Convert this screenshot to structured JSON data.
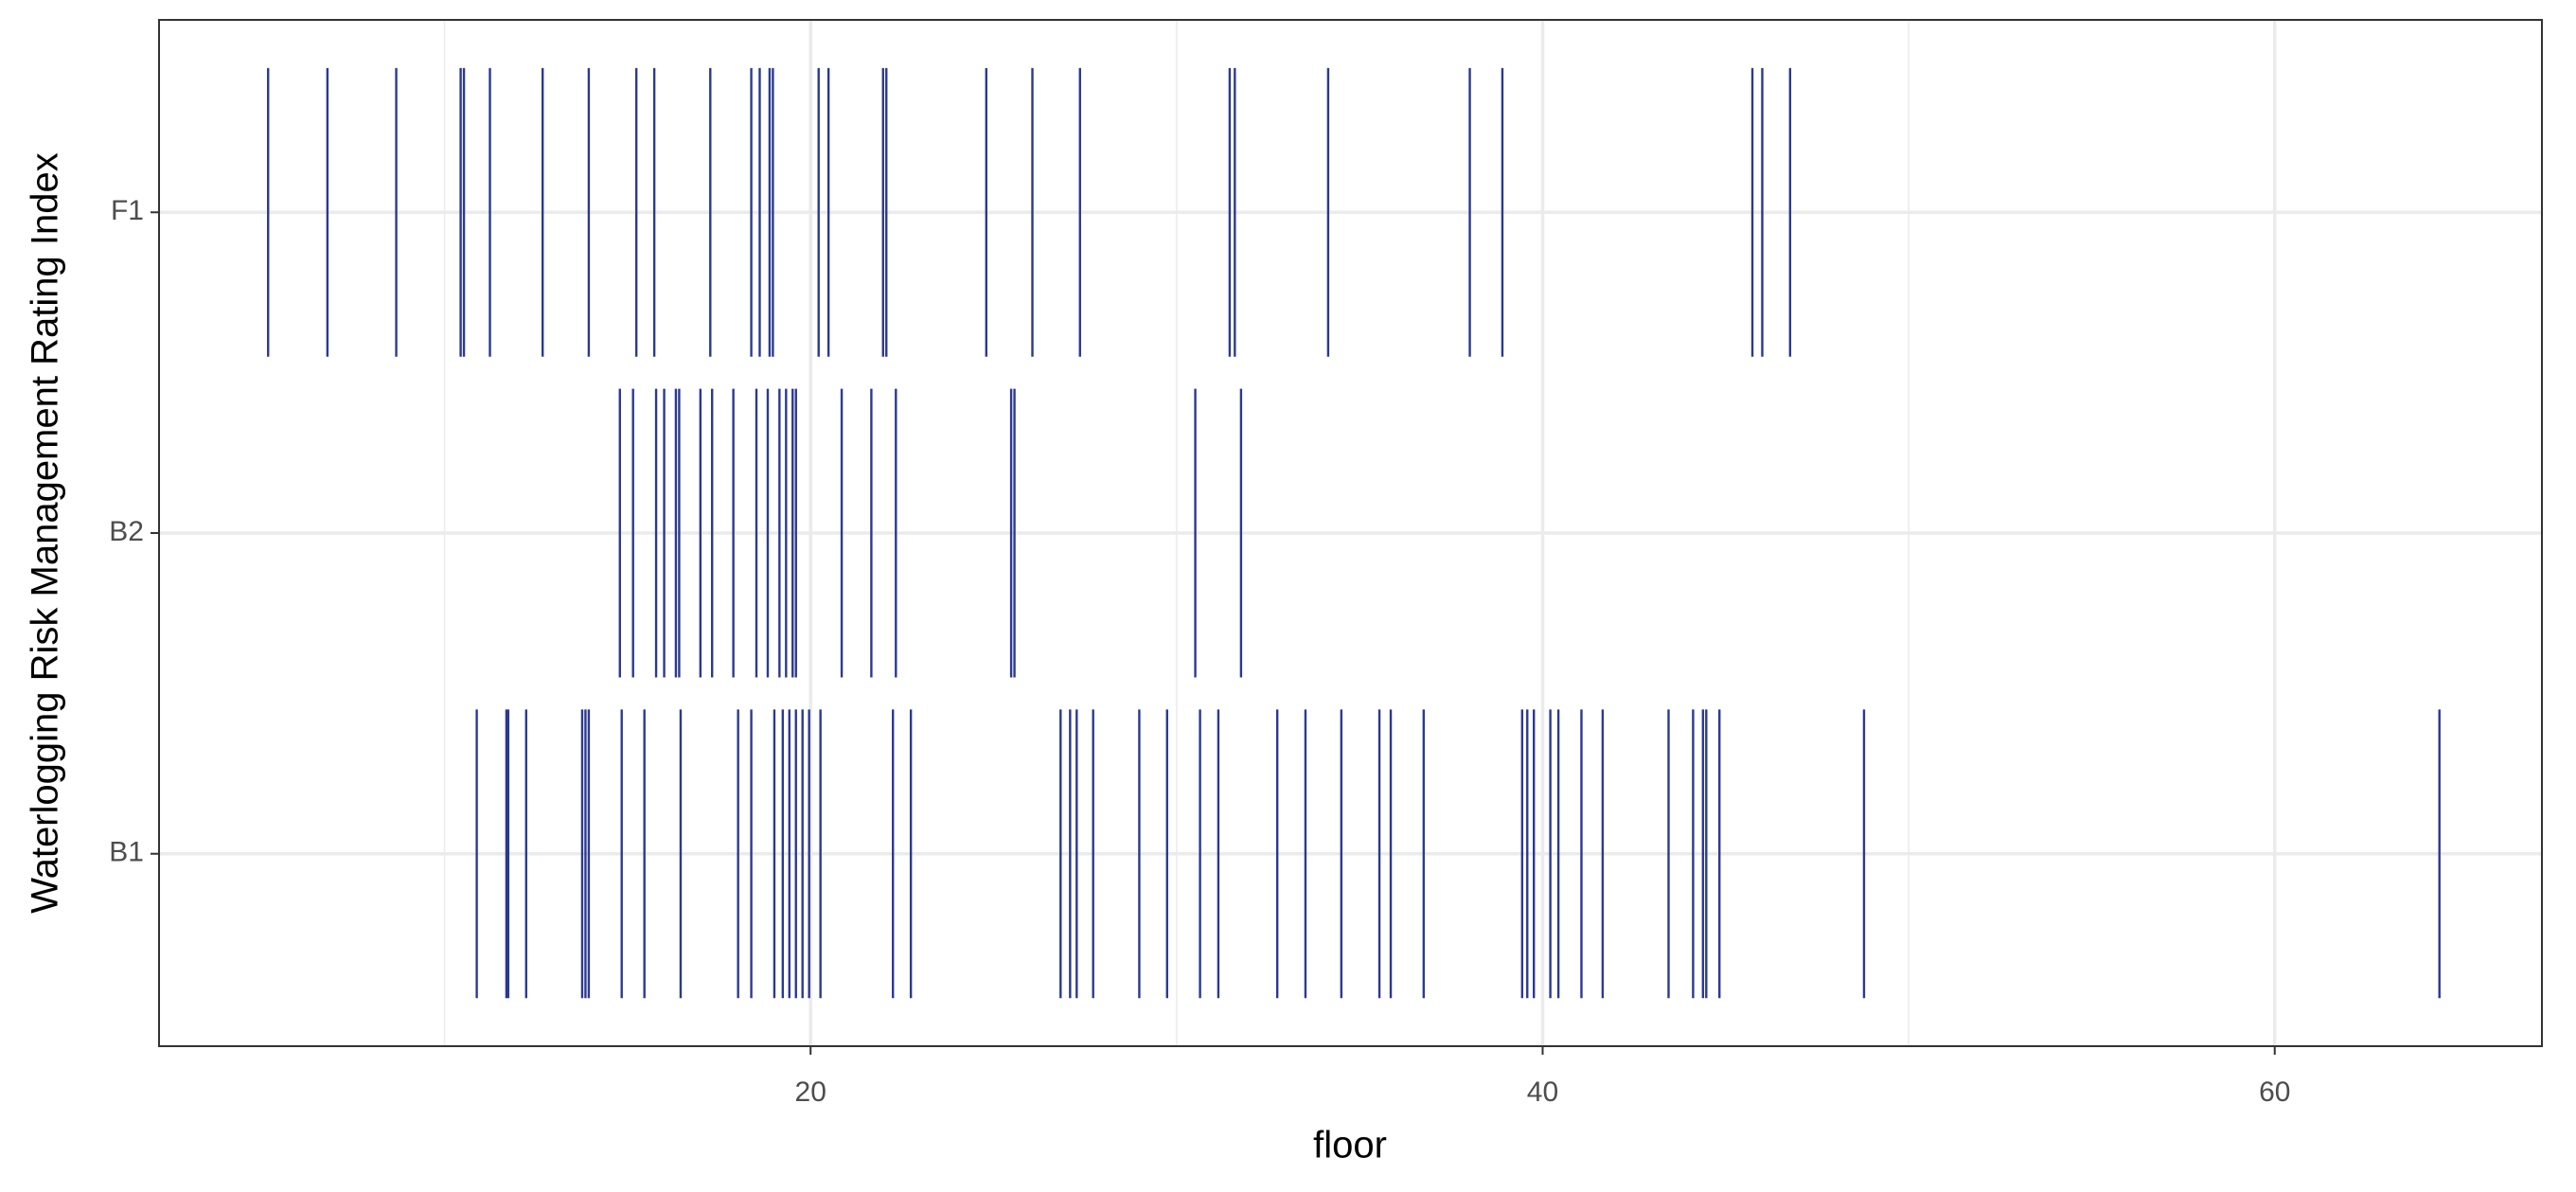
{
  "chart_data": {
    "type": "strip",
    "x_label": "floor",
    "y_label": "Waterlogging Risk Management Rating Index",
    "categories": [
      "B1",
      "B2",
      "F1"
    ],
    "values": [
      [
        10.88,
        11.69,
        11.74,
        12.23,
        13.76,
        13.85,
        13.94,
        14.84,
        15.46,
        16.45,
        18.02,
        18.38,
        19.01,
        19.24,
        19.42,
        19.6,
        19.78,
        19.96,
        20.27,
        22.25,
        22.74,
        26.83,
        27.09,
        27.27,
        27.72,
        28.98,
        29.74,
        30.64,
        31.14,
        32.75,
        33.52,
        34.5,
        35.54,
        35.85,
        36.75,
        39.44,
        39.58,
        39.76,
        40.21,
        40.43,
        41.06,
        41.64,
        43.44,
        44.11,
        44.38,
        44.47,
        44.83,
        48.78,
        64.5
      ],
      [
        14.79,
        15.15,
        15.78,
        16.0,
        16.32,
        16.41,
        16.99,
        17.31,
        17.89,
        18.52,
        18.83,
        19.15,
        19.33,
        19.51,
        19.6,
        20.85,
        21.66,
        22.33,
        25.48,
        25.57,
        30.51,
        31.76
      ],
      [
        5.18,
        6.8,
        8.68,
        10.44,
        10.53,
        11.24,
        12.68,
        13.94,
        15.24,
        15.73,
        17.26,
        18.38,
        18.61,
        18.88,
        18.97,
        20.22,
        20.49,
        21.98,
        22.07,
        24.8,
        26.06,
        27.36,
        31.45,
        31.59,
        34.14,
        38.01,
        38.9,
        45.73,
        46.0,
        46.76
      ]
    ],
    "color": "#2b3990",
    "xlim": [
      2.2,
      67.3
    ],
    "xticks": [
      20,
      40,
      60
    ],
    "xminorticks": [
      10,
      30,
      50
    ],
    "grid": true
  }
}
